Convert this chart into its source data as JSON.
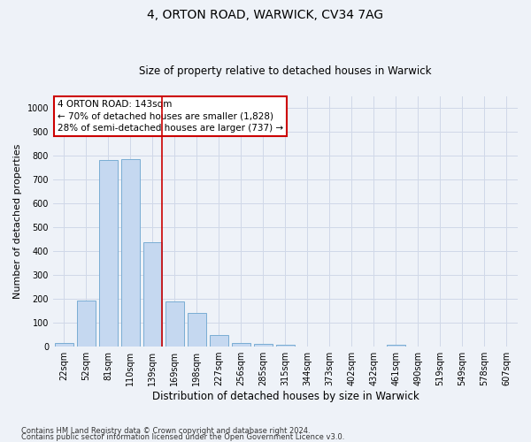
{
  "title_line1": "4, ORTON ROAD, WARWICK, CV34 7AG",
  "title_line2": "Size of property relative to detached houses in Warwick",
  "xlabel": "Distribution of detached houses by size in Warwick",
  "ylabel": "Number of detached properties",
  "categories": [
    "22sqm",
    "52sqm",
    "81sqm",
    "110sqm",
    "139sqm",
    "169sqm",
    "198sqm",
    "227sqm",
    "256sqm",
    "285sqm",
    "315sqm",
    "344sqm",
    "373sqm",
    "402sqm",
    "432sqm",
    "461sqm",
    "490sqm",
    "519sqm",
    "549sqm",
    "578sqm",
    "607sqm"
  ],
  "values": [
    15,
    193,
    783,
    785,
    438,
    190,
    143,
    50,
    15,
    10,
    8,
    0,
    0,
    0,
    0,
    8,
    0,
    0,
    0,
    0,
    0
  ],
  "bar_color": "#c5d8f0",
  "bar_edge_color": "#7aadd4",
  "grid_color": "#d0d8e8",
  "vline_color": "#cc0000",
  "annotation_line1": "4 ORTON ROAD: 143sqm",
  "annotation_line2": "← 70% of detached houses are smaller (1,828)",
  "annotation_line3": "28% of semi-detached houses are larger (737) →",
  "annotation_box_color": "#ffffff",
  "annotation_box_edge_color": "#cc0000",
  "ylim": [
    0,
    1050
  ],
  "yticks": [
    0,
    100,
    200,
    300,
    400,
    500,
    600,
    700,
    800,
    900,
    1000
  ],
  "footer_line1": "Contains HM Land Registry data © Crown copyright and database right 2024.",
  "footer_line2": "Contains public sector information licensed under the Open Government Licence v3.0.",
  "background_color": "#eef2f8",
  "title1_fontsize": 10,
  "title2_fontsize": 8.5,
  "ylabel_fontsize": 8,
  "xlabel_fontsize": 8.5,
  "tick_fontsize": 7,
  "annotation_fontsize": 7.5,
  "footer_fontsize": 6
}
